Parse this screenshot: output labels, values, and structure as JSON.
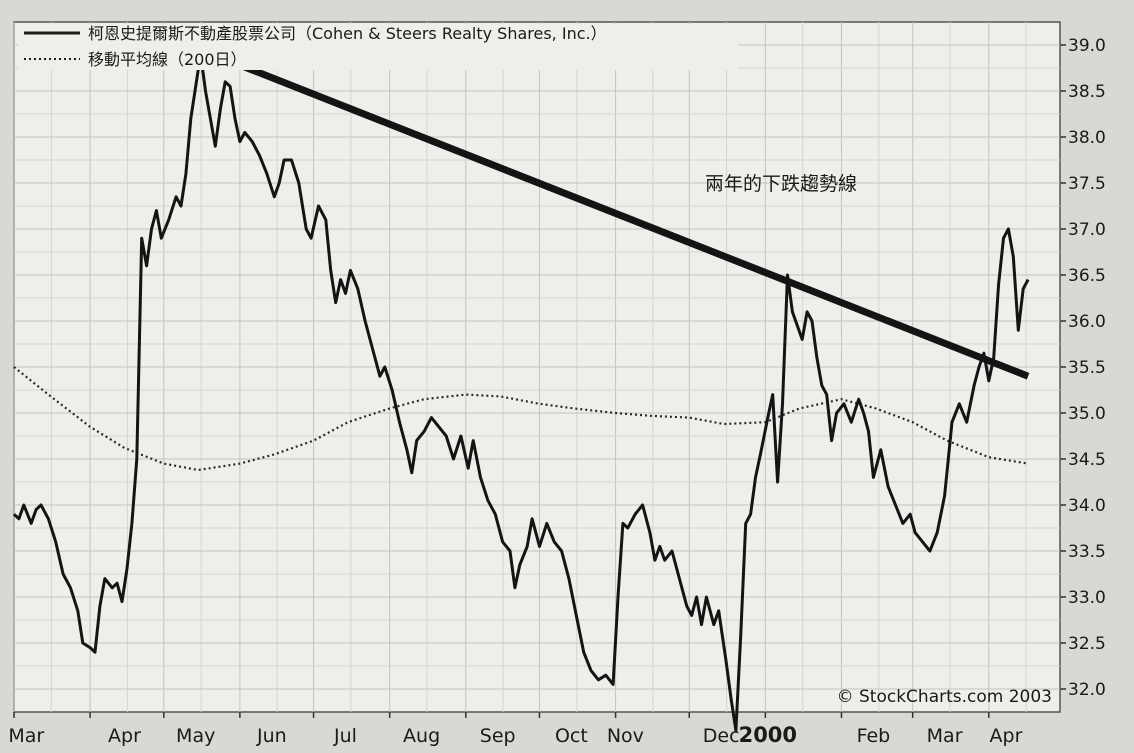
{
  "chart_data": {
    "type": "line",
    "legend": {
      "placement": "top-left",
      "items": [
        {
          "label": "柯恩史提爾斯不動產股票公司（Cohen & Steers Realty Shares, Inc.）",
          "style": "solid"
        },
        {
          "label": "移動平均線（200日）",
          "style": "dotted"
        }
      ]
    },
    "annotation": "兩年的下跌趨勢線",
    "copyright": "© StockCharts.com 2003",
    "x_tick_labels": [
      "Mar",
      "Apr",
      "May",
      "Jun",
      "Jul",
      "Aug",
      "Sep",
      "Oct",
      "Nov",
      "Dec",
      "2000",
      "Feb",
      "Mar",
      "Apr"
    ],
    "y_ticks": [
      "32.0",
      "32.5",
      "33.0",
      "33.5",
      "34.0",
      "34.5",
      "35.0",
      "35.5",
      "36.0",
      "36.5",
      "37.0",
      "37.5",
      "38.0",
      "38.5",
      "39.0"
    ],
    "ylim": [
      31.75,
      39.25
    ],
    "y_axis_side": "right",
    "grid": true,
    "x_domain": [
      "1999-03-01",
      "2000-04-30"
    ],
    "series": [
      {
        "name": "柯恩史提爾斯不動產股票公司（Cohen & Steers Realty Shares, Inc.）",
        "style": "solid",
        "points": [
          [
            "1999-03-01",
            33.9
          ],
          [
            "1999-03-03",
            33.85
          ],
          [
            "1999-03-05",
            34.0
          ],
          [
            "1999-03-08",
            33.8
          ],
          [
            "1999-03-10",
            33.95
          ],
          [
            "1999-03-12",
            34.0
          ],
          [
            "1999-03-15",
            33.85
          ],
          [
            "1999-03-18",
            33.6
          ],
          [
            "1999-03-21",
            33.25
          ],
          [
            "1999-03-24",
            33.1
          ],
          [
            "1999-03-27",
            32.85
          ],
          [
            "1999-03-29",
            32.5
          ],
          [
            "1999-04-01",
            32.45
          ],
          [
            "1999-04-03",
            32.4
          ],
          [
            "1999-04-05",
            32.9
          ],
          [
            "1999-04-07",
            33.2
          ],
          [
            "1999-04-10",
            33.1
          ],
          [
            "1999-04-12",
            33.15
          ],
          [
            "1999-04-14",
            32.95
          ],
          [
            "1999-04-16",
            33.3
          ],
          [
            "1999-04-18",
            33.8
          ],
          [
            "1999-04-20",
            34.5
          ],
          [
            "1999-04-22",
            36.9
          ],
          [
            "1999-04-24",
            36.6
          ],
          [
            "1999-04-26",
            37.0
          ],
          [
            "1999-04-28",
            37.2
          ],
          [
            "1999-04-30",
            36.9
          ],
          [
            "1999-05-03",
            37.1
          ],
          [
            "1999-05-06",
            37.35
          ],
          [
            "1999-05-08",
            37.25
          ],
          [
            "1999-05-10",
            37.6
          ],
          [
            "1999-05-12",
            38.2
          ],
          [
            "1999-05-14",
            38.55
          ],
          [
            "1999-05-16",
            38.9
          ],
          [
            "1999-05-18",
            38.5
          ],
          [
            "1999-05-20",
            38.2
          ],
          [
            "1999-05-22",
            37.9
          ],
          [
            "1999-05-24",
            38.3
          ],
          [
            "1999-05-26",
            38.6
          ],
          [
            "1999-05-28",
            38.55
          ],
          [
            "1999-05-30",
            38.2
          ],
          [
            "1999-06-01",
            37.95
          ],
          [
            "1999-06-03",
            38.05
          ],
          [
            "1999-06-06",
            37.95
          ],
          [
            "1999-06-09",
            37.8
          ],
          [
            "1999-06-12",
            37.6
          ],
          [
            "1999-06-15",
            37.35
          ],
          [
            "1999-06-17",
            37.5
          ],
          [
            "1999-06-19",
            37.75
          ],
          [
            "1999-06-22",
            37.75
          ],
          [
            "1999-06-25",
            37.5
          ],
          [
            "1999-06-28",
            37.0
          ],
          [
            "1999-06-30",
            36.9
          ],
          [
            "1999-07-03",
            37.25
          ],
          [
            "1999-07-06",
            37.1
          ],
          [
            "1999-07-08",
            36.55
          ],
          [
            "1999-07-10",
            36.2
          ],
          [
            "1999-07-12",
            36.45
          ],
          [
            "1999-07-14",
            36.3
          ],
          [
            "1999-07-16",
            36.55
          ],
          [
            "1999-07-19",
            36.35
          ],
          [
            "1999-07-22",
            36.0
          ],
          [
            "1999-07-25",
            35.7
          ],
          [
            "1999-07-28",
            35.4
          ],
          [
            "1999-07-30",
            35.5
          ],
          [
            "1999-08-02",
            35.25
          ],
          [
            "1999-08-05",
            34.9
          ],
          [
            "1999-08-08",
            34.6
          ],
          [
            "1999-08-10",
            34.35
          ],
          [
            "1999-08-12",
            34.7
          ],
          [
            "1999-08-15",
            34.8
          ],
          [
            "1999-08-18",
            34.95
          ],
          [
            "1999-08-21",
            34.85
          ],
          [
            "1999-08-24",
            34.75
          ],
          [
            "1999-08-27",
            34.5
          ],
          [
            "1999-08-30",
            34.75
          ],
          [
            "1999-09-02",
            34.4
          ],
          [
            "1999-09-04",
            34.7
          ],
          [
            "1999-09-07",
            34.3
          ],
          [
            "1999-09-10",
            34.05
          ],
          [
            "1999-09-13",
            33.9
          ],
          [
            "1999-09-16",
            33.6
          ],
          [
            "1999-09-19",
            33.5
          ],
          [
            "1999-09-21",
            33.1
          ],
          [
            "1999-09-23",
            33.35
          ],
          [
            "1999-09-26",
            33.55
          ],
          [
            "1999-09-28",
            33.85
          ],
          [
            "1999-10-01",
            33.55
          ],
          [
            "1999-10-04",
            33.8
          ],
          [
            "1999-10-07",
            33.6
          ],
          [
            "1999-10-10",
            33.5
          ],
          [
            "1999-10-13",
            33.2
          ],
          [
            "1999-10-16",
            32.8
          ],
          [
            "1999-10-19",
            32.4
          ],
          [
            "1999-10-22",
            32.2
          ],
          [
            "1999-10-25",
            32.1
          ],
          [
            "1999-10-28",
            32.15
          ],
          [
            "1999-10-31",
            32.05
          ],
          [
            "1999-11-02",
            33.0
          ],
          [
            "1999-11-04",
            33.8
          ],
          [
            "1999-11-06",
            33.75
          ],
          [
            "1999-11-09",
            33.9
          ],
          [
            "1999-11-12",
            34.0
          ],
          [
            "1999-11-15",
            33.7
          ],
          [
            "1999-11-17",
            33.4
          ],
          [
            "1999-11-19",
            33.55
          ],
          [
            "1999-11-21",
            33.4
          ],
          [
            "1999-11-24",
            33.5
          ],
          [
            "1999-11-27",
            33.2
          ],
          [
            "1999-11-30",
            32.9
          ],
          [
            "1999-12-02",
            32.8
          ],
          [
            "1999-12-04",
            33.0
          ],
          [
            "1999-12-06",
            32.7
          ],
          [
            "1999-12-08",
            33.0
          ],
          [
            "1999-12-11",
            32.7
          ],
          [
            "1999-12-13",
            32.85
          ],
          [
            "1999-12-16",
            32.3
          ],
          [
            "1999-12-18",
            31.9
          ],
          [
            "1999-12-20",
            31.55
          ],
          [
            "1999-12-22",
            32.6
          ],
          [
            "1999-12-24",
            33.8
          ],
          [
            "1999-12-26",
            33.9
          ],
          [
            "1999-12-28",
            34.3
          ],
          [
            "1999-12-30",
            34.55
          ],
          [
            "2000-01-02",
            34.95
          ],
          [
            "2000-01-04",
            35.2
          ],
          [
            "2000-01-06",
            34.25
          ],
          [
            "2000-01-08",
            35.1
          ],
          [
            "2000-01-10",
            36.5
          ],
          [
            "2000-01-12",
            36.1
          ],
          [
            "2000-01-14",
            35.95
          ],
          [
            "2000-01-16",
            35.8
          ],
          [
            "2000-01-18",
            36.1
          ],
          [
            "2000-01-20",
            36.0
          ],
          [
            "2000-01-22",
            35.6
          ],
          [
            "2000-01-24",
            35.3
          ],
          [
            "2000-01-26",
            35.2
          ],
          [
            "2000-01-28",
            34.7
          ],
          [
            "2000-01-30",
            35.0
          ],
          [
            "2000-02-02",
            35.1
          ],
          [
            "2000-02-05",
            34.9
          ],
          [
            "2000-02-08",
            35.15
          ],
          [
            "2000-02-10",
            35.0
          ],
          [
            "2000-02-12",
            34.8
          ],
          [
            "2000-02-14",
            34.3
          ],
          [
            "2000-02-17",
            34.6
          ],
          [
            "2000-02-20",
            34.2
          ],
          [
            "2000-02-23",
            34.0
          ],
          [
            "2000-02-26",
            33.8
          ],
          [
            "2000-02-29",
            33.9
          ],
          [
            "2000-03-02",
            33.7
          ],
          [
            "2000-03-05",
            33.6
          ],
          [
            "2000-03-08",
            33.5
          ],
          [
            "2000-03-11",
            33.7
          ],
          [
            "2000-03-14",
            34.1
          ],
          [
            "2000-03-17",
            34.9
          ],
          [
            "2000-03-20",
            35.1
          ],
          [
            "2000-03-23",
            34.9
          ],
          [
            "2000-03-26",
            35.3
          ],
          [
            "2000-03-28",
            35.5
          ],
          [
            "2000-03-30",
            35.65
          ],
          [
            "2000-04-01",
            35.35
          ],
          [
            "2000-04-03",
            35.6
          ],
          [
            "2000-04-05",
            36.4
          ],
          [
            "2000-04-07",
            36.9
          ],
          [
            "2000-04-09",
            37.0
          ],
          [
            "2000-04-11",
            36.7
          ],
          [
            "2000-04-13",
            35.9
          ],
          [
            "2000-04-15",
            36.35
          ],
          [
            "2000-04-17",
            36.45
          ]
        ]
      },
      {
        "name": "移動平均線（200日）",
        "style": "dotted",
        "points": [
          [
            "1999-03-01",
            35.5
          ],
          [
            "1999-03-15",
            35.2
          ],
          [
            "1999-04-01",
            34.85
          ],
          [
            "1999-04-15",
            34.62
          ],
          [
            "1999-05-01",
            34.45
          ],
          [
            "1999-05-15",
            34.38
          ],
          [
            "1999-06-01",
            34.45
          ],
          [
            "1999-06-15",
            34.55
          ],
          [
            "1999-07-01",
            34.7
          ],
          [
            "1999-07-15",
            34.9
          ],
          [
            "1999-08-01",
            35.05
          ],
          [
            "1999-08-15",
            35.15
          ],
          [
            "1999-09-01",
            35.2
          ],
          [
            "1999-09-15",
            35.18
          ],
          [
            "1999-10-01",
            35.1
          ],
          [
            "1999-10-15",
            35.05
          ],
          [
            "1999-11-01",
            35.0
          ],
          [
            "1999-11-15",
            34.97
          ],
          [
            "1999-12-01",
            34.95
          ],
          [
            "1999-12-15",
            34.88
          ],
          [
            "2000-01-01",
            34.9
          ],
          [
            "2000-01-15",
            35.05
          ],
          [
            "2000-02-01",
            35.15
          ],
          [
            "2000-02-15",
            35.05
          ],
          [
            "2000-03-01",
            34.9
          ],
          [
            "2000-03-15",
            34.7
          ],
          [
            "2000-04-01",
            34.52
          ],
          [
            "2000-04-17",
            34.45
          ]
        ]
      }
    ],
    "trendline": {
      "points": [
        [
          "1999-05-16",
          38.95
        ],
        [
          "2000-04-17",
          35.4
        ]
      ]
    }
  }
}
